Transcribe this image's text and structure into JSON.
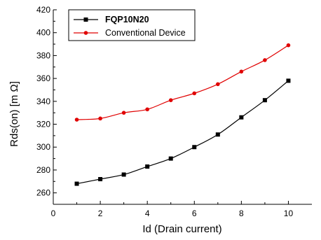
{
  "chart_data": {
    "type": "line",
    "xlabel": "Id (Drain current)",
    "ylabel": "Rds(on)   [m  Ω]",
    "xlim": [
      0,
      11
    ],
    "ylim": [
      250,
      420
    ],
    "x_ticks": [
      0,
      2,
      4,
      6,
      8,
      10
    ],
    "y_ticks": [
      260,
      280,
      300,
      320,
      340,
      360,
      380,
      400,
      420
    ],
    "grid": false,
    "legend_position": "top-left",
    "x": [
      1,
      2,
      3,
      4,
      5,
      6,
      7,
      8,
      9,
      10
    ],
    "series": [
      {
        "name": "FQP10N20",
        "color": "#000000",
        "marker": "square",
        "values": [
          268,
          272,
          276,
          283,
          290,
          300,
          311,
          326,
          341,
          358
        ]
      },
      {
        "name": "Conventional Device",
        "color": "#e00000",
        "marker": "circle",
        "values": [
          324,
          325,
          330,
          333,
          341,
          347,
          355,
          366,
          376,
          389
        ]
      }
    ]
  }
}
